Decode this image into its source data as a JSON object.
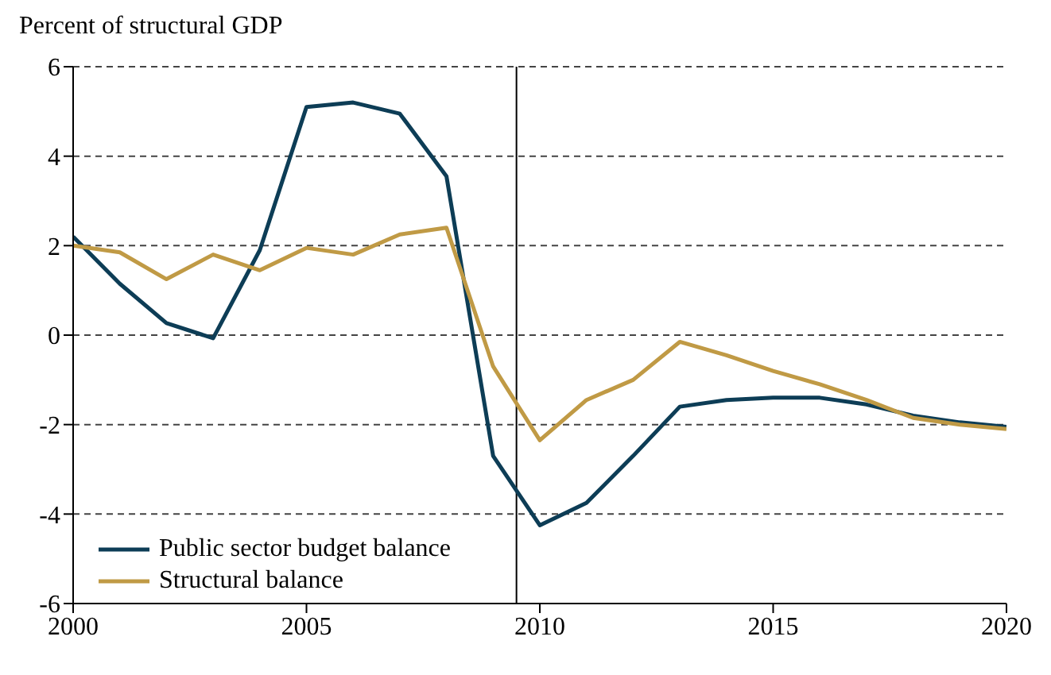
{
  "chart_data": {
    "type": "line",
    "ylabel": "Percent of structural GDP",
    "x": [
      2000,
      2001,
      2002,
      2003,
      2004,
      2005,
      2006,
      2007,
      2008,
      2009,
      2010,
      2011,
      2012,
      2013,
      2014,
      2015,
      2016,
      2017,
      2018,
      2019,
      2020
    ],
    "series": [
      {
        "name": "Public sector budget balance",
        "color": "#0d3d56",
        "values": [
          2.2,
          1.15,
          0.27,
          -0.07,
          1.9,
          5.1,
          5.2,
          4.95,
          3.55,
          -2.7,
          -4.25,
          -3.75,
          -2.7,
          -1.6,
          -1.45,
          -1.4,
          -1.4,
          -1.55,
          -1.8,
          -1.95,
          -2.05
        ]
      },
      {
        "name": "Structural balance",
        "color": "#c09a45",
        "values": [
          2.0,
          1.85,
          1.25,
          1.8,
          1.45,
          1.95,
          1.8,
          2.25,
          2.4,
          -0.7,
          -2.35,
          -1.45,
          -1.0,
          -0.15,
          -0.45,
          -0.8,
          -1.1,
          -1.45,
          -1.85,
          -2.0,
          -2.1
        ]
      }
    ],
    "xlim": [
      2000,
      2020
    ],
    "xticks": [
      2000,
      2005,
      2010,
      2015,
      2020
    ],
    "ylim": [
      -6,
      6
    ],
    "yticks": [
      -6,
      -4,
      -2,
      0,
      2,
      4,
      6
    ],
    "ref_lines": [
      {
        "axis": "x",
        "value": 2009.5,
        "color": "#000000"
      }
    ],
    "grid": "y",
    "legend": "bottom left",
    "marker": "none",
    "line_style": "solid"
  }
}
